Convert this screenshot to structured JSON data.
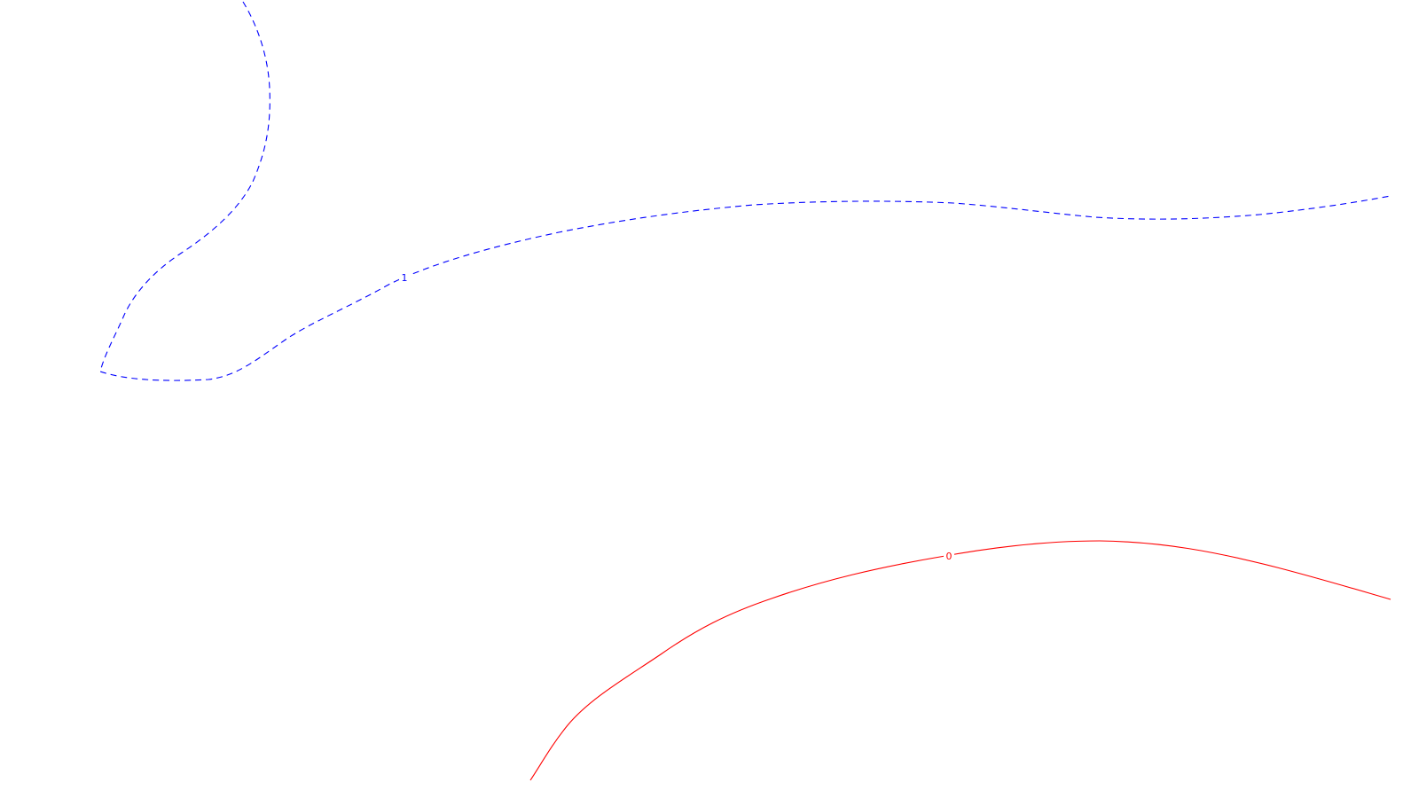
{
  "background": "#ffffff",
  "contours": [
    {
      "name": "contour-1",
      "label": "1",
      "color": "#0000ff",
      "style": "dashed"
    },
    {
      "name": "contour-0",
      "label": "0",
      "color": "#ff0000",
      "style": "solid"
    }
  ]
}
